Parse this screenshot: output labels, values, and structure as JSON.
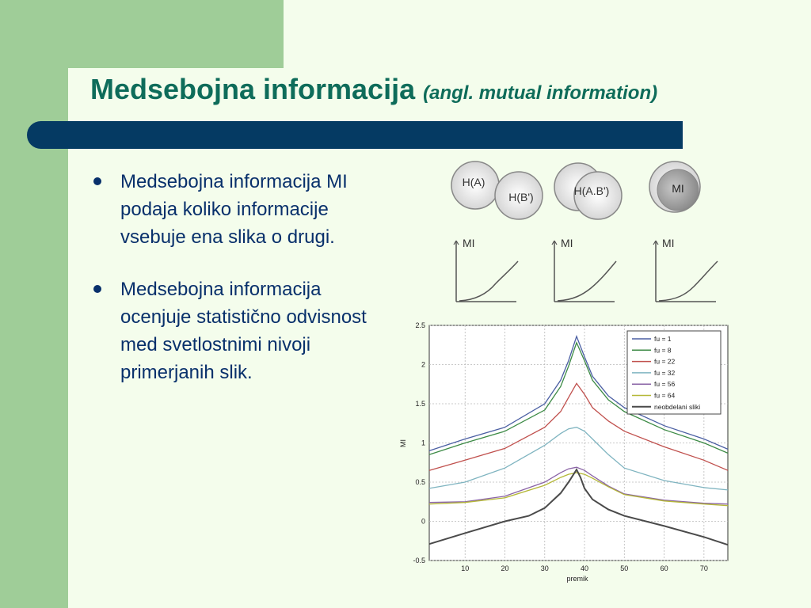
{
  "title": {
    "main": "Medsebojna informacija",
    "sub": "(angl. mutual information)"
  },
  "bullets": [
    "Medsebojna informacija MI podaja koliko informacije vsebuje ena slika o drugi.",
    "Medsebojna informacija ocenjuje statistično odvisnost med svetlostnimi nivoji primerjanih slik."
  ],
  "venn": {
    "labels": [
      "H(A)",
      "H(B')",
      "H(A.B')",
      "MI"
    ]
  },
  "mini_plots": {
    "labels": [
      "MI",
      "MI",
      "MI"
    ]
  },
  "colors": {
    "background": "#f4fdec",
    "side_green": "#9fcd98",
    "title": "#0e6c5a",
    "bar": "#053a63",
    "text": "#08306b"
  },
  "chart_data": {
    "type": "line",
    "xlabel": "premik",
    "ylabel": "MI",
    "xlim": [
      1,
      76
    ],
    "ylim": [
      -0.5,
      2.5
    ],
    "xticks": [
      10,
      20,
      30,
      40,
      50,
      60,
      70
    ],
    "yticks": [
      -0.5,
      0,
      0.5,
      1,
      1.5,
      2,
      2.5
    ],
    "grid": true,
    "legend_position": "top-right",
    "series": [
      {
        "name": "fu = 1",
        "color": "#4b5fa3",
        "points": [
          [
            1,
            0.9
          ],
          [
            10,
            1.05
          ],
          [
            20,
            1.2
          ],
          [
            30,
            1.5
          ],
          [
            34,
            1.8
          ],
          [
            36,
            2.05
          ],
          [
            38,
            2.36
          ],
          [
            40,
            2.1
          ],
          [
            42,
            1.85
          ],
          [
            46,
            1.6
          ],
          [
            50,
            1.45
          ],
          [
            60,
            1.22
          ],
          [
            70,
            1.05
          ],
          [
            76,
            0.92
          ]
        ]
      },
      {
        "name": "fu = 8",
        "color": "#3c8a45",
        "points": [
          [
            1,
            0.85
          ],
          [
            10,
            1.0
          ],
          [
            20,
            1.15
          ],
          [
            30,
            1.42
          ],
          [
            34,
            1.72
          ],
          [
            36,
            1.98
          ],
          [
            38,
            2.28
          ],
          [
            40,
            2.05
          ],
          [
            42,
            1.8
          ],
          [
            46,
            1.55
          ],
          [
            50,
            1.4
          ],
          [
            60,
            1.17
          ],
          [
            70,
            1.0
          ],
          [
            76,
            0.87
          ]
        ]
      },
      {
        "name": "fu = 22",
        "color": "#c0504d",
        "points": [
          [
            1,
            0.65
          ],
          [
            10,
            0.78
          ],
          [
            20,
            0.93
          ],
          [
            30,
            1.2
          ],
          [
            34,
            1.4
          ],
          [
            36,
            1.58
          ],
          [
            38,
            1.76
          ],
          [
            40,
            1.62
          ],
          [
            42,
            1.45
          ],
          [
            46,
            1.28
          ],
          [
            50,
            1.15
          ],
          [
            60,
            0.95
          ],
          [
            70,
            0.78
          ],
          [
            76,
            0.65
          ]
        ]
      },
      {
        "name": "fu = 32",
        "color": "#7fb4c0",
        "points": [
          [
            1,
            0.42
          ],
          [
            10,
            0.5
          ],
          [
            20,
            0.68
          ],
          [
            30,
            0.97
          ],
          [
            34,
            1.12
          ],
          [
            36,
            1.18
          ],
          [
            38,
            1.2
          ],
          [
            40,
            1.15
          ],
          [
            42,
            1.05
          ],
          [
            46,
            0.85
          ],
          [
            50,
            0.68
          ],
          [
            60,
            0.52
          ],
          [
            70,
            0.43
          ],
          [
            76,
            0.4
          ]
        ]
      },
      {
        "name": "fu = 56",
        "color": "#8a63a6",
        "points": [
          [
            1,
            0.24
          ],
          [
            10,
            0.25
          ],
          [
            20,
            0.32
          ],
          [
            30,
            0.5
          ],
          [
            34,
            0.62
          ],
          [
            36,
            0.67
          ],
          [
            38,
            0.69
          ],
          [
            40,
            0.65
          ],
          [
            42,
            0.58
          ],
          [
            46,
            0.45
          ],
          [
            50,
            0.35
          ],
          [
            60,
            0.27
          ],
          [
            70,
            0.23
          ],
          [
            76,
            0.22
          ]
        ]
      },
      {
        "name": "fu = 64",
        "color": "#b5b838",
        "points": [
          [
            1,
            0.22
          ],
          [
            10,
            0.24
          ],
          [
            20,
            0.3
          ],
          [
            30,
            0.46
          ],
          [
            34,
            0.56
          ],
          [
            36,
            0.6
          ],
          [
            38,
            0.62
          ],
          [
            40,
            0.6
          ],
          [
            42,
            0.55
          ],
          [
            46,
            0.44
          ],
          [
            50,
            0.34
          ],
          [
            60,
            0.26
          ],
          [
            70,
            0.22
          ],
          [
            76,
            0.2
          ]
        ]
      },
      {
        "name": "neobdelani sliki",
        "color": "#4a4a4a",
        "points": [
          [
            1,
            -0.29
          ],
          [
            10,
            -0.15
          ],
          [
            20,
            0.0
          ],
          [
            26,
            0.07
          ],
          [
            30,
            0.17
          ],
          [
            34,
            0.36
          ],
          [
            36,
            0.5
          ],
          [
            37,
            0.58
          ],
          [
            38,
            0.66
          ],
          [
            39,
            0.56
          ],
          [
            40,
            0.42
          ],
          [
            42,
            0.28
          ],
          [
            46,
            0.15
          ],
          [
            50,
            0.07
          ],
          [
            60,
            -0.06
          ],
          [
            70,
            -0.2
          ],
          [
            76,
            -0.3
          ]
        ]
      }
    ]
  }
}
